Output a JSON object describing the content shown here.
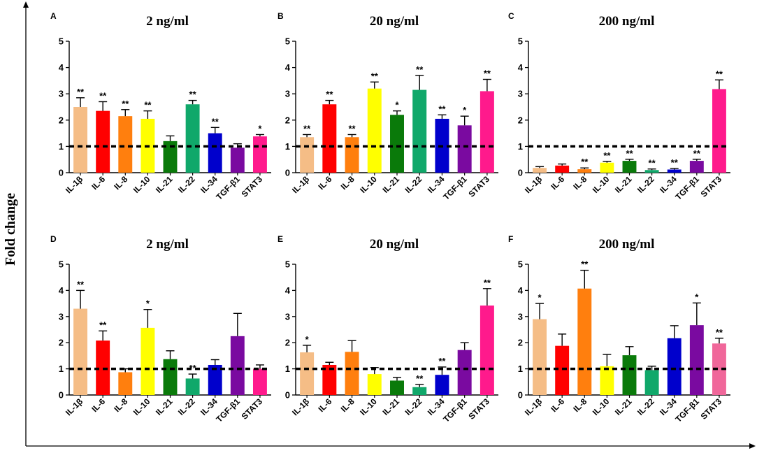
{
  "figure": {
    "ylabel": "Fold change",
    "colors": {
      "IL-1β": "#f5bd86",
      "IL-6": "#ff0000",
      "IL-8": "#ff7f0e",
      "IL-10": "#ffff00",
      "IL-21": "#0a7a0a",
      "IL-22": "#10a86a",
      "IL-34": "#0000cc",
      "TGF-β1": "#7a0aa0",
      "STAT3": "#ff1a8c"
    }
  },
  "chart_data": [
    {
      "type": "bar",
      "panel": "A",
      "title": "2 ng/ml",
      "categories": [
        "IL-1β",
        "IL-6",
        "IL-8",
        "IL-10",
        "IL-21",
        "IL-22",
        "IL-34",
        "TGF-β1",
        "STAT3"
      ],
      "values": [
        2.5,
        2.35,
        2.15,
        2.05,
        1.2,
        2.6,
        1.5,
        0.95,
        1.38
      ],
      "errors": [
        0.35,
        0.35,
        0.25,
        0.3,
        0.2,
        0.15,
        0.22,
        0.15,
        0.07
      ],
      "significance": [
        "**",
        "**",
        "**",
        "**",
        "",
        "**",
        "**",
        "",
        "*"
      ],
      "yticks": [
        0,
        1,
        2,
        3,
        4,
        5
      ],
      "ylim": [
        0,
        5
      ],
      "reference_line": 1
    },
    {
      "type": "bar",
      "panel": "B",
      "title": "20 ng/ml",
      "categories": [
        "IL-1β",
        "IL-6",
        "IL-8",
        "IL-10",
        "IL-21",
        "IL-22",
        "IL-34",
        "TGF-β1",
        "STAT3"
      ],
      "values": [
        1.35,
        2.6,
        1.35,
        3.2,
        2.2,
        3.15,
        2.05,
        1.8,
        3.1
      ],
      "errors": [
        0.1,
        0.15,
        0.1,
        0.25,
        0.15,
        0.55,
        0.15,
        0.35,
        0.45
      ],
      "significance": [
        "**",
        "**",
        "**",
        "**",
        "*",
        "**",
        "**",
        "*",
        "**"
      ],
      "yticks": [
        0,
        1,
        2,
        3,
        4,
        5
      ],
      "ylim": [
        0,
        5
      ],
      "reference_line": 1
    },
    {
      "type": "bar",
      "panel": "C",
      "title": "200 ng/ml",
      "categories": [
        "IL-1β",
        "IL-6",
        "IL-8",
        "IL-10",
        "IL-21",
        "IL-22",
        "IL-34",
        "TGF-β1",
        "STAT3"
      ],
      "values": [
        0.18,
        0.27,
        0.13,
        0.38,
        0.45,
        0.1,
        0.12,
        0.45,
        3.18
      ],
      "errors": [
        0.05,
        0.06,
        0.05,
        0.05,
        0.06,
        0.04,
        0.04,
        0.06,
        0.35
      ],
      "significance": [
        "",
        "",
        "**",
        "**",
        "**",
        "**",
        "**",
        "**",
        "**"
      ],
      "yticks": [
        0,
        1,
        2,
        3,
        4,
        5
      ],
      "ylim": [
        0,
        5
      ],
      "reference_line": 1
    },
    {
      "type": "bar",
      "panel": "D",
      "title": "2 ng/ml",
      "categories": [
        "IL-1β",
        "IL-6",
        "IL-8",
        "IL-10",
        "IL-21",
        "IL-22",
        "IL-34",
        "TGF-β1",
        "STAT3"
      ],
      "values": [
        3.3,
        2.08,
        0.87,
        2.57,
        1.37,
        0.63,
        1.15,
        2.25,
        1.0
      ],
      "errors": [
        0.7,
        0.37,
        0.13,
        0.7,
        0.32,
        0.17,
        0.2,
        0.87,
        0.15
      ],
      "significance": [
        "**",
        "**",
        "",
        "*",
        "",
        "**",
        "",
        "",
        ""
      ],
      "yticks": [
        0,
        1,
        2,
        3,
        4,
        5
      ],
      "ylim": [
        0,
        5
      ],
      "reference_line": 1
    },
    {
      "type": "bar",
      "panel": "E",
      "title": "20 ng/ml",
      "categories": [
        "IL-1β",
        "IL-6",
        "IL-8",
        "IL-10",
        "IL-21",
        "IL-22",
        "IL-34",
        "TGF-β1",
        "STAT3"
      ],
      "values": [
        1.63,
        1.15,
        1.65,
        0.8,
        0.55,
        0.3,
        0.77,
        1.72,
        3.42
      ],
      "errors": [
        0.27,
        0.1,
        0.43,
        0.25,
        0.12,
        0.1,
        0.3,
        0.28,
        0.65
      ],
      "significance": [
        "*",
        "",
        "",
        "",
        "",
        "**",
        "**",
        "",
        "**"
      ],
      "yticks": [
        0,
        1,
        2,
        3,
        4,
        5
      ],
      "ylim": [
        0,
        5
      ],
      "reference_line": 1
    },
    {
      "type": "bar",
      "panel": "F",
      "title": "200 ng/ml",
      "categories": [
        "IL-1β",
        "IL-6",
        "IL-8",
        "IL-10",
        "IL-21",
        "IL-22",
        "IL-34",
        "TGF-β1",
        "STAT3"
      ],
      "values": [
        2.9,
        1.88,
        4.07,
        1.1,
        1.52,
        0.95,
        2.17,
        2.67,
        1.97
      ],
      "errors": [
        0.6,
        0.45,
        0.7,
        0.45,
        0.33,
        0.15,
        0.48,
        0.85,
        0.2
      ],
      "significance": [
        "*",
        "",
        "**",
        "",
        "",
        "",
        "",
        "*",
        "**"
      ],
      "yticks": [
        0,
        1,
        2,
        3,
        4,
        5
      ],
      "ylim": [
        0,
        5
      ],
      "reference_line": 1
    }
  ]
}
